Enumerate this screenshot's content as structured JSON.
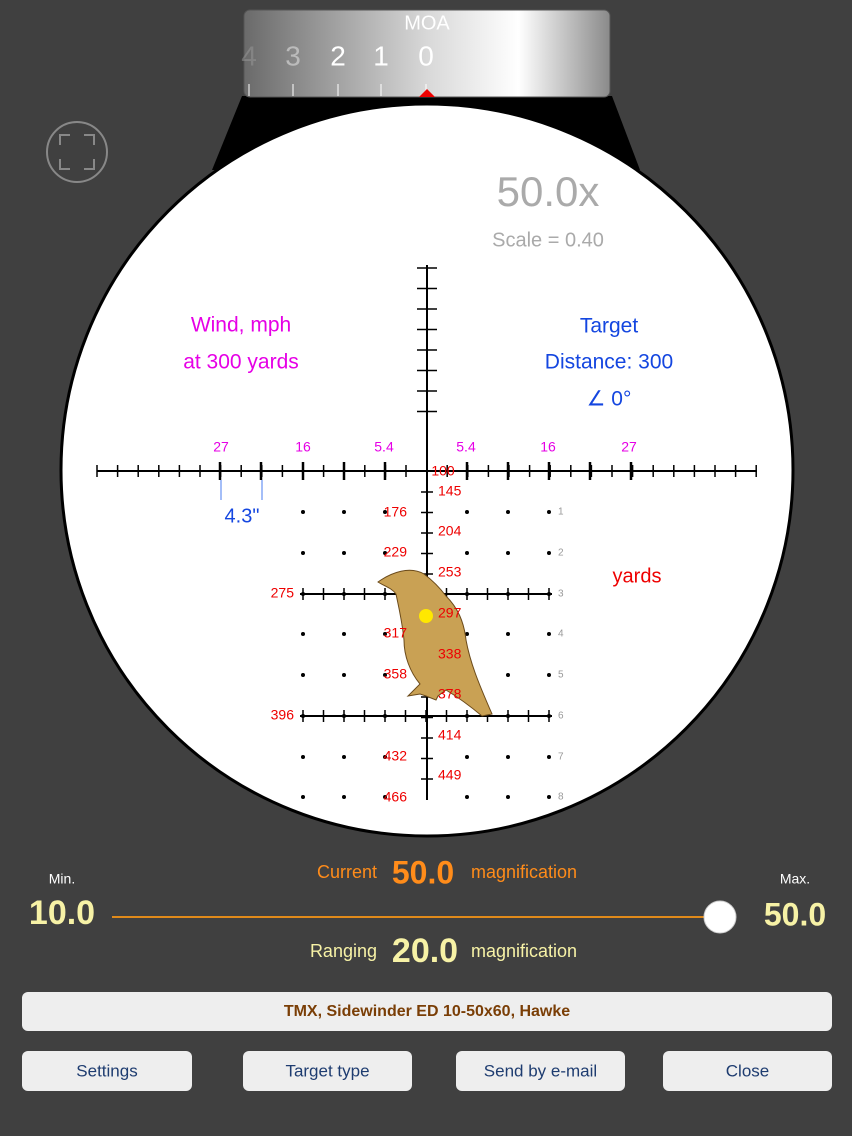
{
  "turret": {
    "unit": "MOA",
    "numbers": [
      "4",
      "3",
      "2",
      "1",
      "0"
    ]
  },
  "scope": {
    "magnification": "50.0x",
    "scale": "Scale = 0.40",
    "wind_title": "Wind, mph",
    "wind_distance": "at 300 yards",
    "target_title": "Target",
    "target_distance": "Distance: 300",
    "target_angle": "∠ 0°",
    "wind_marks": [
      "27",
      "16",
      "5.4",
      "5.4",
      "16",
      "27"
    ],
    "holdover": "4.3\"",
    "ranges": [
      "100",
      "145",
      "176",
      "204",
      "229",
      "253",
      "275",
      "297",
      "317",
      "338",
      "358",
      "378",
      "396",
      "414",
      "432",
      "449",
      "466"
    ],
    "rows": [
      "1",
      "2",
      "3",
      "4",
      "5",
      "6",
      "7",
      "8"
    ],
    "range_unit": "yards"
  },
  "controls": {
    "min_label": "Min.",
    "min_value": "10.0",
    "max_label": "Max.",
    "max_value": "50.0",
    "current_label": "Current",
    "current_value": "50.0",
    "current_unit": "magnification",
    "ranging_label": "Ranging",
    "ranging_value": "20.0",
    "ranging_unit": "magnification"
  },
  "reticle_name": "TMX, Sidewinder ED 10-50x60, Hawke",
  "buttons": [
    "Settings",
    "Target type",
    "Send by e-mail",
    "Close"
  ]
}
